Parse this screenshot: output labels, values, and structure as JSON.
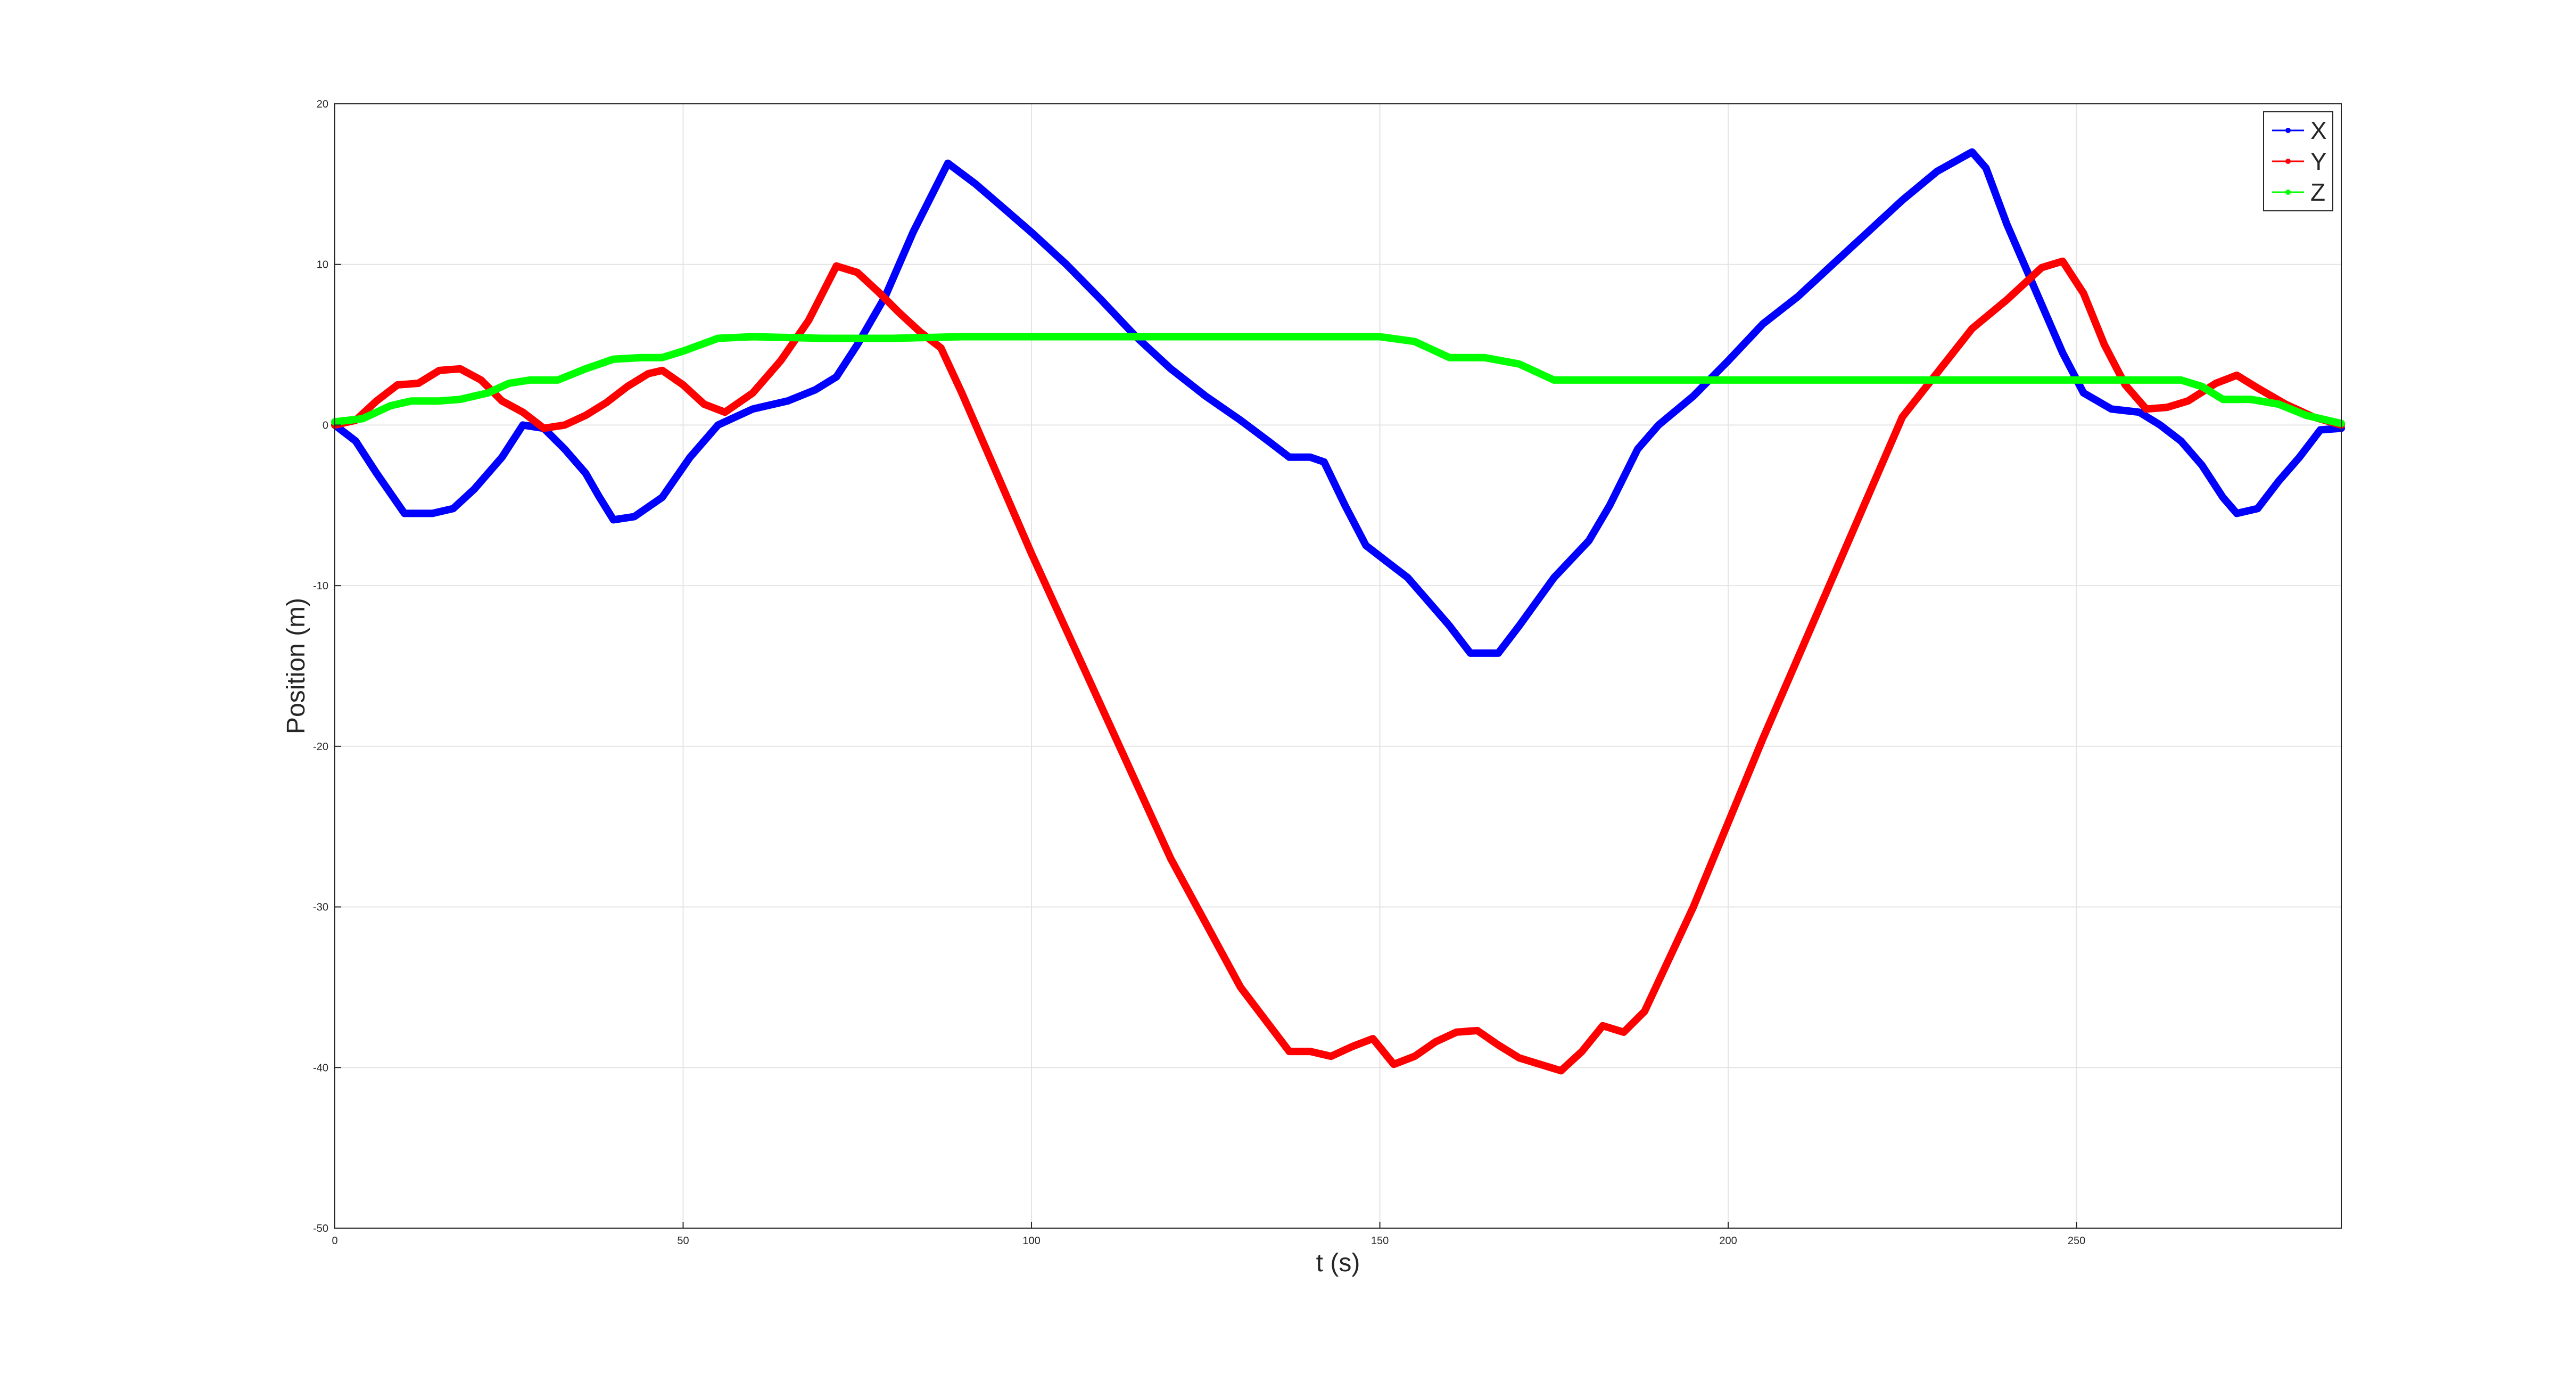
{
  "chart_data": {
    "type": "line",
    "title": "",
    "xlabel": "t (s)",
    "ylabel": "Position (m)",
    "xlim": [
      0,
      288
    ],
    "ylim": [
      -50,
      20
    ],
    "xticks": [
      0,
      50,
      100,
      150,
      200,
      250
    ],
    "yticks": [
      20,
      10,
      0,
      -10,
      -20,
      -30,
      -40,
      -50
    ],
    "grid": true,
    "legend_position": "top-right",
    "series": [
      {
        "name": "X",
        "color": "#0000ff",
        "points": [
          [
            0,
            0
          ],
          [
            3,
            -1
          ],
          [
            6,
            -3
          ],
          [
            10,
            -5.5
          ],
          [
            14,
            -5.5
          ],
          [
            17,
            -5.2
          ],
          [
            20,
            -4
          ],
          [
            24,
            -2
          ],
          [
            27,
            0
          ],
          [
            30,
            -0.2
          ],
          [
            33,
            -1.5
          ],
          [
            36,
            -3
          ],
          [
            38,
            -4.5
          ],
          [
            40,
            -5.9
          ],
          [
            43,
            -5.7
          ],
          [
            47,
            -4.5
          ],
          [
            51,
            -2
          ],
          [
            55,
            0
          ],
          [
            60,
            1
          ],
          [
            65,
            1.5
          ],
          [
            69,
            2.2
          ],
          [
            72,
            3
          ],
          [
            75,
            5
          ],
          [
            79,
            8
          ],
          [
            83,
            12
          ],
          [
            88,
            16.3
          ],
          [
            92,
            15
          ],
          [
            96,
            13.5
          ],
          [
            100,
            12
          ],
          [
            105,
            10
          ],
          [
            110,
            7.8
          ],
          [
            115,
            5.5
          ],
          [
            120,
            3.5
          ],
          [
            125,
            1.8
          ],
          [
            130,
            0.3
          ],
          [
            134,
            -1
          ],
          [
            137,
            -2
          ],
          [
            140,
            -2
          ],
          [
            142,
            -2.3
          ],
          [
            145,
            -5
          ],
          [
            148,
            -7.5
          ],
          [
            151,
            -8.5
          ],
          [
            154,
            -9.5
          ],
          [
            157,
            -11
          ],
          [
            160,
            -12.5
          ],
          [
            163,
            -14.2
          ],
          [
            167,
            -14.2
          ],
          [
            170,
            -12.5
          ],
          [
            175,
            -9.5
          ],
          [
            180,
            -7.2
          ],
          [
            183,
            -5
          ],
          [
            187,
            -1.5
          ],
          [
            190,
            0
          ],
          [
            195,
            1.8
          ],
          [
            200,
            4
          ],
          [
            205,
            6.3
          ],
          [
            210,
            8
          ],
          [
            215,
            10
          ],
          [
            220,
            12
          ],
          [
            225,
            14
          ],
          [
            230,
            15.8
          ],
          [
            235,
            17
          ],
          [
            237,
            16
          ],
          [
            240,
            12.5
          ],
          [
            244,
            8.5
          ],
          [
            248,
            4.5
          ],
          [
            251,
            2
          ],
          [
            255,
            1
          ],
          [
            259,
            0.8
          ],
          [
            262,
            0
          ],
          [
            265,
            -1
          ],
          [
            268,
            -2.5
          ],
          [
            271,
            -4.5
          ],
          [
            273,
            -5.5
          ],
          [
            276,
            -5.2
          ],
          [
            279,
            -3.5
          ],
          [
            282,
            -2
          ],
          [
            285,
            -0.3
          ],
          [
            288,
            -0.2
          ]
        ]
      },
      {
        "name": "Y",
        "color": "#ff0000",
        "points": [
          [
            0,
            0
          ],
          [
            3,
            0.3
          ],
          [
            6,
            1.5
          ],
          [
            9,
            2.5
          ],
          [
            12,
            2.6
          ],
          [
            15,
            3.4
          ],
          [
            18,
            3.5
          ],
          [
            21,
            2.8
          ],
          [
            24,
            1.5
          ],
          [
            27,
            0.8
          ],
          [
            30,
            -0.2
          ],
          [
            33,
            0
          ],
          [
            36,
            0.6
          ],
          [
            39,
            1.4
          ],
          [
            42,
            2.4
          ],
          [
            45,
            3.2
          ],
          [
            47,
            3.4
          ],
          [
            50,
            2.5
          ],
          [
            53,
            1.3
          ],
          [
            56,
            0.8
          ],
          [
            60,
            2
          ],
          [
            64,
            4
          ],
          [
            68,
            6.5
          ],
          [
            72,
            9.9
          ],
          [
            75,
            9.5
          ],
          [
            78,
            8.3
          ],
          [
            81,
            7
          ],
          [
            84,
            5.8
          ],
          [
            87,
            4.8
          ],
          [
            90,
            2
          ],
          [
            95,
            -3
          ],
          [
            100,
            -8
          ],
          [
            110,
            -17.5
          ],
          [
            120,
            -27
          ],
          [
            130,
            -35
          ],
          [
            137,
            -39
          ],
          [
            140,
            -39
          ],
          [
            143,
            -39.3
          ],
          [
            146,
            -38.7
          ],
          [
            149,
            -38.2
          ],
          [
            152,
            -39.8
          ],
          [
            155,
            -39.3
          ],
          [
            158,
            -38.4
          ],
          [
            161,
            -37.8
          ],
          [
            164,
            -37.7
          ],
          [
            167,
            -38.6
          ],
          [
            170,
            -39.4
          ],
          [
            173,
            -39.8
          ],
          [
            176,
            -40.2
          ],
          [
            179,
            -39
          ],
          [
            182,
            -37.4
          ],
          [
            185,
            -37.8
          ],
          [
            188,
            -36.5
          ],
          [
            195,
            -30
          ],
          [
            205,
            -19.5
          ],
          [
            215,
            -9.5
          ],
          [
            225,
            0.5
          ],
          [
            235,
            6
          ],
          [
            240,
            7.8
          ],
          [
            245,
            9.8
          ],
          [
            248,
            10.2
          ],
          [
            251,
            8.2
          ],
          [
            254,
            5
          ],
          [
            257,
            2.5
          ],
          [
            260,
            1
          ],
          [
            263,
            1.1
          ],
          [
            266,
            1.5
          ],
          [
            270,
            2.6
          ],
          [
            273,
            3.1
          ],
          [
            276,
            2.3
          ],
          [
            280,
            1.3
          ],
          [
            284,
            0.5
          ],
          [
            288,
            0
          ]
        ]
      },
      {
        "name": "Z",
        "color": "#00ff00",
        "points": [
          [
            0,
            0.2
          ],
          [
            4,
            0.4
          ],
          [
            8,
            1.2
          ],
          [
            11,
            1.5
          ],
          [
            15,
            1.5
          ],
          [
            18,
            1.6
          ],
          [
            22,
            2
          ],
          [
            25,
            2.6
          ],
          [
            28,
            2.8
          ],
          [
            32,
            2.8
          ],
          [
            36,
            3.5
          ],
          [
            40,
            4.1
          ],
          [
            44,
            4.2
          ],
          [
            47,
            4.2
          ],
          [
            50,
            4.6
          ],
          [
            55,
            5.4
          ],
          [
            60,
            5.5
          ],
          [
            70,
            5.4
          ],
          [
            80,
            5.4
          ],
          [
            90,
            5.5
          ],
          [
            100,
            5.5
          ],
          [
            110,
            5.5
          ],
          [
            120,
            5.5
          ],
          [
            130,
            5.5
          ],
          [
            140,
            5.5
          ],
          [
            150,
            5.5
          ],
          [
            155,
            5.2
          ],
          [
            160,
            4.2
          ],
          [
            165,
            4.2
          ],
          [
            170,
            3.8
          ],
          [
            175,
            2.8
          ],
          [
            180,
            2.8
          ],
          [
            190,
            2.8
          ],
          [
            200,
            2.8
          ],
          [
            210,
            2.8
          ],
          [
            220,
            2.8
          ],
          [
            230,
            2.8
          ],
          [
            240,
            2.8
          ],
          [
            250,
            2.8
          ],
          [
            260,
            2.8
          ],
          [
            265,
            2.8
          ],
          [
            268,
            2.4
          ],
          [
            271,
            1.6
          ],
          [
            275,
            1.6
          ],
          [
            279,
            1.3
          ],
          [
            283,
            0.6
          ],
          [
            288,
            0.1
          ]
        ]
      }
    ]
  }
}
